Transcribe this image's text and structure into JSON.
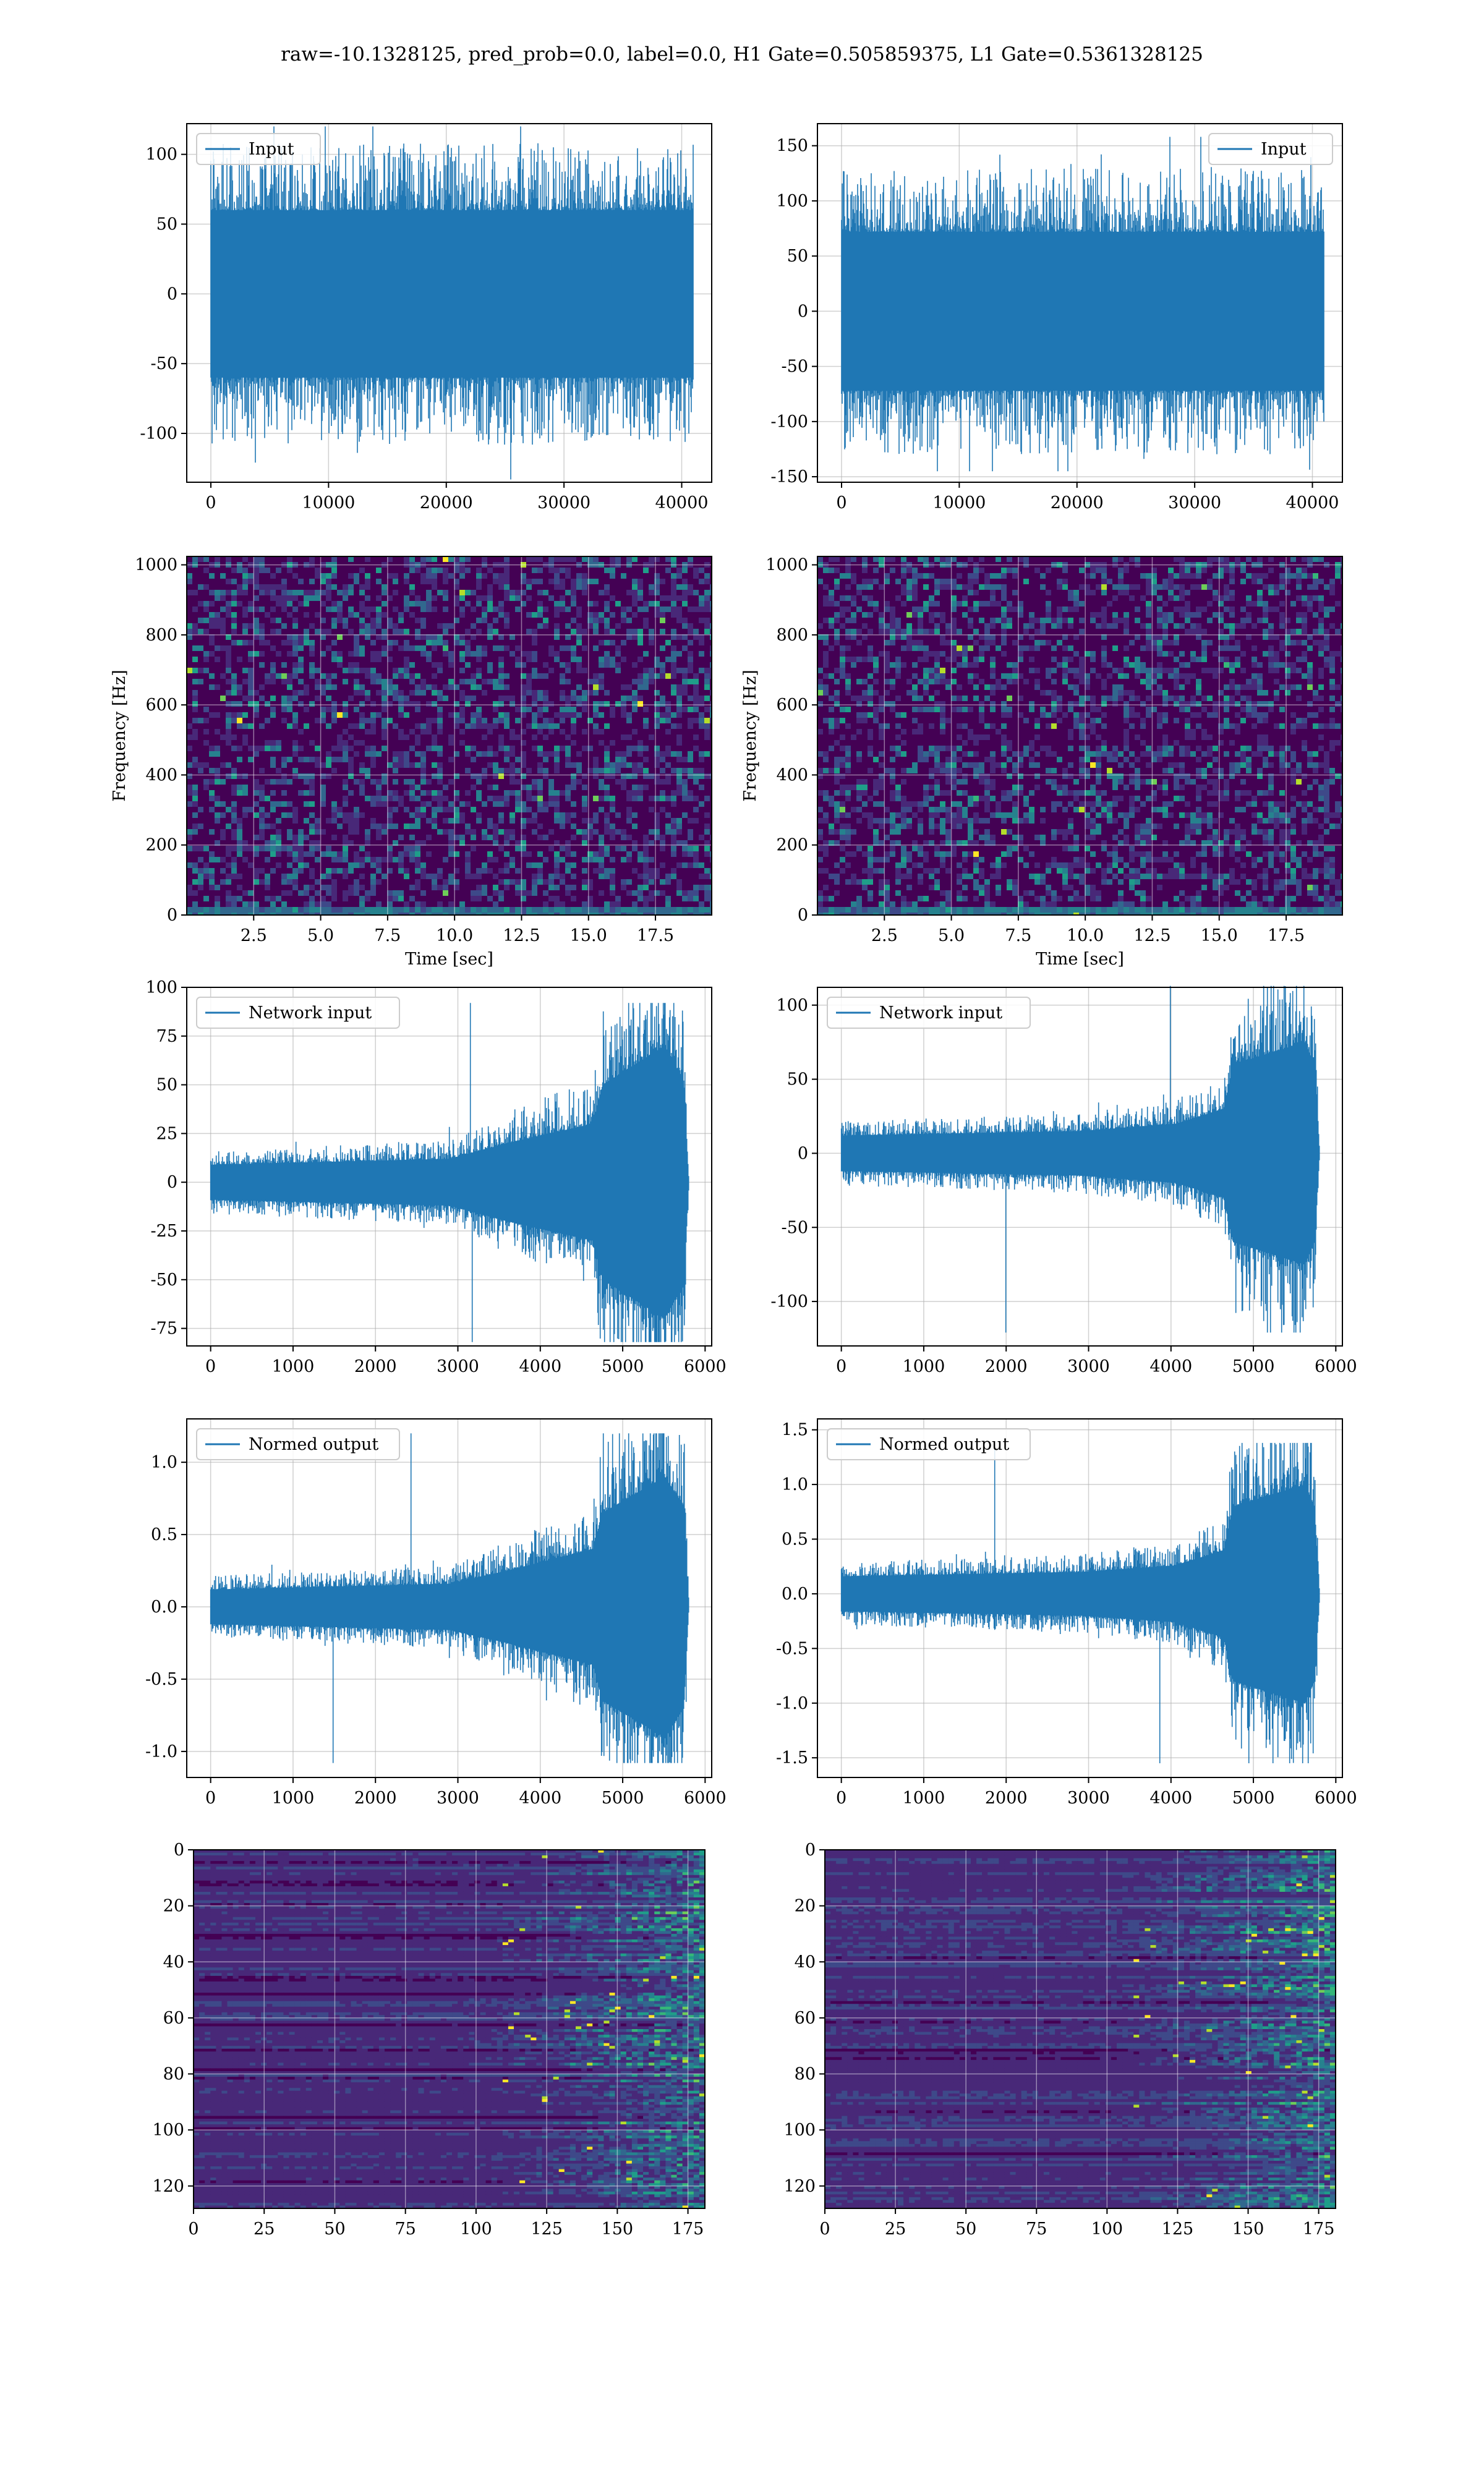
{
  "figure": {
    "title": "raw=-10.1328125, pred_prob=0.0, label=0.0, H1 Gate=0.505859375, L1 Gate=0.5361328125"
  },
  "colors": {
    "line": "#1f77b4",
    "grid": "#b0b0b0",
    "viridis": [
      "#440154",
      "#482878",
      "#3e4989",
      "#31688e",
      "#26828e",
      "#1f9e89",
      "#35b779",
      "#6ece58",
      "#b5de2b",
      "#fde725"
    ]
  },
  "chart_data": [
    {
      "id": "h1-input",
      "type": "line",
      "series": [
        {
          "name": "Input"
        }
      ],
      "legend": "upper-left",
      "xlim": [
        -2048,
        42548
      ],
      "ylim": [
        -135,
        122
      ],
      "xticks": [
        0,
        10000,
        20000,
        30000,
        40000
      ],
      "yticks": [
        -100,
        -50,
        0,
        50,
        100
      ],
      "signal": {
        "samples": 40960,
        "envelope": [
          [
            0,
            60
          ],
          [
            1,
            60
          ]
        ],
        "peak": 120,
        "trough": -133
      },
      "grid": true
    },
    {
      "id": "l1-input",
      "type": "line",
      "series": [
        {
          "name": "Input"
        }
      ],
      "legend": "upper-right",
      "xlim": [
        -2048,
        42548
      ],
      "ylim": [
        -155,
        170
      ],
      "xticks": [
        0,
        10000,
        20000,
        30000,
        40000
      ],
      "yticks": [
        -150,
        -100,
        -50,
        0,
        50,
        100,
        150
      ],
      "signal": {
        "samples": 40960,
        "envelope": [
          [
            0,
            72
          ],
          [
            1,
            72
          ]
        ],
        "peak": 158,
        "trough": -145
      },
      "grid": true
    },
    {
      "id": "h1-spectrogram",
      "type": "heatmap",
      "xlabel": "Time [sec]",
      "ylabel": "Frequency [Hz]",
      "xlim": [
        0,
        19.6
      ],
      "ylim": [
        0,
        1024
      ],
      "xticks": [
        2.5,
        5.0,
        7.5,
        10.0,
        12.5,
        15.0,
        17.5
      ],
      "yticks": [
        0,
        200,
        400,
        600,
        800,
        1000
      ],
      "colormap": "viridis",
      "grid": true
    },
    {
      "id": "l1-spectrogram",
      "type": "heatmap",
      "xlabel": "Time [sec]",
      "ylabel": "Frequency [Hz]",
      "xlim": [
        0,
        19.6
      ],
      "ylim": [
        0,
        1024
      ],
      "xticks": [
        2.5,
        5.0,
        7.5,
        10.0,
        12.5,
        15.0,
        17.5
      ],
      "yticks": [
        0,
        200,
        400,
        600,
        800,
        1000
      ],
      "colormap": "viridis",
      "grid": true
    },
    {
      "id": "h1-network-input",
      "type": "line",
      "series": [
        {
          "name": "Network input"
        }
      ],
      "legend": "upper-left",
      "xlim": [
        -290,
        6080
      ],
      "ylim": [
        -84,
        100
      ],
      "xticks": [
        0,
        1000,
        2000,
        3000,
        4000,
        5000,
        6000
      ],
      "yticks": [
        -75,
        -50,
        -25,
        0,
        25,
        50,
        75,
        100
      ],
      "signal": {
        "samples": 5800,
        "envelope": [
          [
            0,
            9
          ],
          [
            0.5,
            12
          ],
          [
            0.62,
            20
          ],
          [
            0.8,
            30
          ],
          [
            0.82,
            50
          ],
          [
            0.95,
            70
          ],
          [
            0.99,
            52
          ],
          [
            1,
            3
          ]
        ],
        "peak": 92,
        "trough": -82
      },
      "grid": true
    },
    {
      "id": "l1-network-input",
      "type": "line",
      "series": [
        {
          "name": "Network input"
        }
      ],
      "legend": "upper-left",
      "xlim": [
        -290,
        6080
      ],
      "ylim": [
        -130,
        112
      ],
      "xticks": [
        0,
        1000,
        2000,
        3000,
        4000,
        5000,
        6000
      ],
      "yticks": [
        -100,
        -50,
        0,
        50,
        100
      ],
      "signal": {
        "samples": 5800,
        "envelope": [
          [
            0,
            12
          ],
          [
            0.5,
            15
          ],
          [
            0.7,
            20
          ],
          [
            0.8,
            30
          ],
          [
            0.82,
            60
          ],
          [
            0.97,
            75
          ],
          [
            0.99,
            60
          ],
          [
            1,
            4
          ]
        ],
        "peak": 113,
        "trough": -121
      },
      "grid": true
    },
    {
      "id": "h1-normed-output",
      "type": "line",
      "series": [
        {
          "name": "Normed output"
        }
      ],
      "legend": "upper-left",
      "xlim": [
        -290,
        6080
      ],
      "ylim": [
        -1.18,
        1.3
      ],
      "xticks": [
        0,
        1000,
        2000,
        3000,
        4000,
        5000,
        6000
      ],
      "yticks": [
        -1.0,
        -0.5,
        0.0,
        0.5,
        1.0
      ],
      "signal": {
        "samples": 5800,
        "envelope": [
          [
            0,
            0.12
          ],
          [
            0.5,
            0.16
          ],
          [
            0.62,
            0.25
          ],
          [
            0.8,
            0.4
          ],
          [
            0.82,
            0.65
          ],
          [
            0.95,
            0.9
          ],
          [
            0.99,
            0.7
          ],
          [
            1,
            0.04
          ]
        ],
        "peak": 1.2,
        "trough": -1.08
      },
      "grid": true
    },
    {
      "id": "l1-normed-output",
      "type": "line",
      "series": [
        {
          "name": "Normed output"
        }
      ],
      "legend": "upper-left",
      "xlim": [
        -290,
        6080
      ],
      "ylim": [
        -1.68,
        1.6
      ],
      "xticks": [
        0,
        1000,
        2000,
        3000,
        4000,
        5000,
        6000
      ],
      "yticks": [
        -1.5,
        -1.0,
        -0.5,
        0.0,
        0.5,
        1.0,
        1.5
      ],
      "signal": {
        "samples": 5800,
        "envelope": [
          [
            0,
            0.16
          ],
          [
            0.5,
            0.2
          ],
          [
            0.7,
            0.26
          ],
          [
            0.8,
            0.4
          ],
          [
            0.82,
            0.8
          ],
          [
            0.97,
            1.0
          ],
          [
            0.99,
            0.8
          ],
          [
            1,
            0.05
          ]
        ],
        "peak": 1.38,
        "trough": -1.55
      },
      "grid": true
    },
    {
      "id": "h1-feature-map",
      "type": "heatmap",
      "xlim": [
        0,
        181
      ],
      "ylim": [
        128,
        0
      ],
      "xticks": [
        0,
        25,
        50,
        75,
        100,
        125,
        150,
        175
      ],
      "yticks": [
        0,
        20,
        40,
        60,
        80,
        100,
        120
      ],
      "colormap": "viridis",
      "grid": true
    },
    {
      "id": "l1-feature-map",
      "type": "heatmap",
      "xlim": [
        0,
        181
      ],
      "ylim": [
        128,
        0
      ],
      "xticks": [
        0,
        25,
        50,
        75,
        100,
        125,
        150,
        175
      ],
      "yticks": [
        0,
        20,
        40,
        60,
        80,
        100,
        120
      ],
      "colormap": "viridis",
      "grid": true
    }
  ]
}
